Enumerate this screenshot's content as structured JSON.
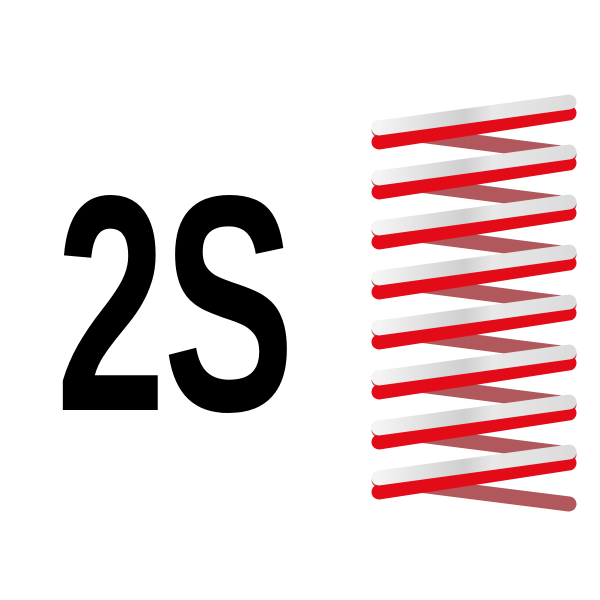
{
  "logo": {
    "text": "2S",
    "coils": 8,
    "colors": {
      "text": "#000000",
      "red": "#e30b17",
      "silver": "#e6e6e6",
      "back_silver": "#bfbfbd",
      "back_red": "#b0585c"
    }
  }
}
